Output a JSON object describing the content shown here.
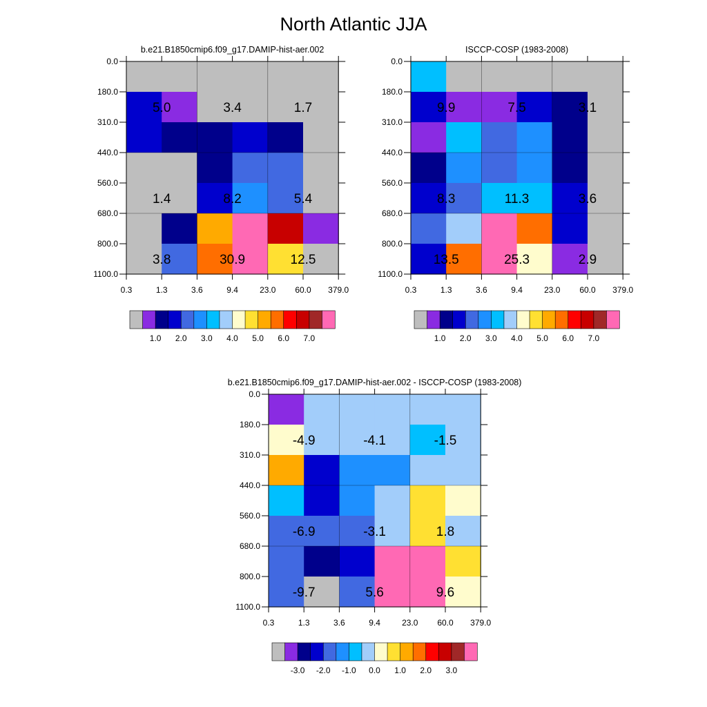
{
  "title": "North Atlantic JJA",
  "palette": [
    "#bebebe",
    "#8a2be2",
    "#00008b",
    "#0000cd",
    "#4169e1",
    "#1e90ff",
    "#00bfff",
    "#a2cdfa",
    "#fffccd",
    "#ffe032",
    "#ffaa00",
    "#ff6e00",
    "#ff0000",
    "#c80000",
    "#a02828",
    "#ff69b4"
  ],
  "chart_data": [
    {
      "type": "heatmap",
      "title": "b.e21.B1850cmip6.f09_g17.DAMIP-hist-aer.002",
      "x_ticks": [
        "0.3",
        "1.3",
        "3.6",
        "9.4",
        "23.0",
        "60.0",
        "379.0"
      ],
      "y_ticks": [
        "0.0",
        "180.0",
        "310.0",
        "440.0",
        "560.0",
        "680.0",
        "800.0",
        "1100.0"
      ],
      "cells": [
        [
          0,
          0,
          0,
          0,
          0,
          0
        ],
        [
          3,
          1,
          0,
          0,
          0,
          0
        ],
        [
          3,
          2,
          2,
          3,
          2,
          0
        ],
        [
          0,
          0,
          2,
          4,
          4,
          0
        ],
        [
          0,
          0,
          3,
          5,
          4,
          0
        ],
        [
          0,
          2,
          10,
          15,
          13,
          1
        ],
        [
          0,
          4,
          11,
          15,
          9,
          0
        ]
      ],
      "labels": [
        {
          "row": 1,
          "col": 0,
          "text": "5.0"
        },
        {
          "row": 1,
          "col": 2,
          "text": "3.4"
        },
        {
          "row": 1,
          "col": 4,
          "text": "1.7"
        },
        {
          "row": 4,
          "col": 0,
          "text": "1.4"
        },
        {
          "row": 4,
          "col": 2,
          "text": "8.2"
        },
        {
          "row": 4,
          "col": 4,
          "text": "5.4"
        },
        {
          "row": 6,
          "col": 0,
          "text": "3.8"
        },
        {
          "row": 6,
          "col": 2,
          "text": "30.9"
        },
        {
          "row": 6,
          "col": 4,
          "text": "12.5"
        }
      ],
      "colorbar_labels": [
        "1.0",
        "2.0",
        "3.0",
        "4.0",
        "5.0",
        "6.0",
        "7.0"
      ]
    },
    {
      "type": "heatmap",
      "title": "ISCCP-COSP (1983-2008)",
      "x_ticks": [
        "0.3",
        "1.3",
        "3.6",
        "9.4",
        "23.0",
        "60.0",
        "379.0"
      ],
      "y_ticks": [
        "0.0",
        "180.0",
        "310.0",
        "440.0",
        "560.0",
        "680.0",
        "800.0",
        "1100.0"
      ],
      "cells": [
        [
          6,
          0,
          0,
          0,
          0,
          0
        ],
        [
          3,
          1,
          1,
          3,
          2,
          0
        ],
        [
          1,
          6,
          4,
          5,
          2,
          0
        ],
        [
          2,
          5,
          4,
          5,
          2,
          0
        ],
        [
          3,
          4,
          6,
          6,
          3,
          0
        ],
        [
          4,
          7,
          15,
          11,
          3,
          0
        ],
        [
          3,
          11,
          15,
          8,
          1,
          0
        ]
      ],
      "labels": [
        {
          "row": 1,
          "col": 0,
          "text": "9.9"
        },
        {
          "row": 1,
          "col": 2,
          "text": "7.5"
        },
        {
          "row": 1,
          "col": 4,
          "text": "3.1"
        },
        {
          "row": 4,
          "col": 0,
          "text": "8.3"
        },
        {
          "row": 4,
          "col": 2,
          "text": "11.3"
        },
        {
          "row": 4,
          "col": 4,
          "text": "3.6"
        },
        {
          "row": 6,
          "col": 0,
          "text": "13.5"
        },
        {
          "row": 6,
          "col": 2,
          "text": "25.3"
        },
        {
          "row": 6,
          "col": 4,
          "text": "2.9"
        }
      ],
      "colorbar_labels": [
        "1.0",
        "2.0",
        "3.0",
        "4.0",
        "5.0",
        "6.0",
        "7.0"
      ]
    },
    {
      "type": "heatmap",
      "title": "b.e21.B1850cmip6.f09_g17.DAMIP-hist-aer.002 - ISCCP-COSP (1983-2008)",
      "x_ticks": [
        "0.3",
        "1.3",
        "3.6",
        "9.4",
        "23.0",
        "60.0",
        "379.0"
      ],
      "y_ticks": [
        "0.0",
        "180.0",
        "310.0",
        "440.0",
        "560.0",
        "680.0",
        "800.0",
        "1100.0"
      ],
      "cells": [
        [
          1,
          7,
          7,
          7,
          7,
          7
        ],
        [
          8,
          7,
          7,
          7,
          6,
          7
        ],
        [
          10,
          3,
          5,
          5,
          7,
          7
        ],
        [
          6,
          3,
          5,
          7,
          9,
          8
        ],
        [
          4,
          4,
          4,
          7,
          9,
          7
        ],
        [
          4,
          2,
          3,
          15,
          15,
          9
        ],
        [
          4,
          0,
          4,
          15,
          15,
          8
        ]
      ],
      "labels": [
        {
          "row": 1,
          "col": 0,
          "text": "-4.9"
        },
        {
          "row": 1,
          "col": 2,
          "text": "-4.1"
        },
        {
          "row": 1,
          "col": 4,
          "text": "-1.5"
        },
        {
          "row": 4,
          "col": 0,
          "text": "-6.9"
        },
        {
          "row": 4,
          "col": 2,
          "text": "-3.1"
        },
        {
          "row": 4,
          "col": 4,
          "text": "1.8"
        },
        {
          "row": 6,
          "col": 0,
          "text": "-9.7"
        },
        {
          "row": 6,
          "col": 2,
          "text": "5.6"
        },
        {
          "row": 6,
          "col": 4,
          "text": "9.6"
        }
      ],
      "colorbar_labels": [
        "-3.0",
        "-2.0",
        "-1.0",
        "0.0",
        "1.0",
        "2.0",
        "3.0"
      ]
    }
  ]
}
